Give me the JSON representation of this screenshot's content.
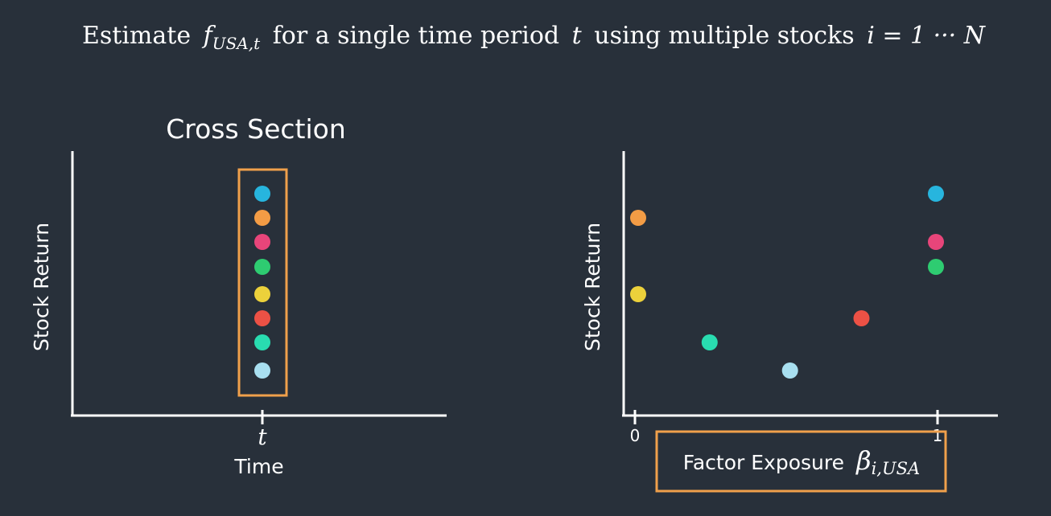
{
  "header": {
    "pre": "Estimate",
    "f_symbol": "f",
    "f_subscript": "USA,t",
    "mid": "for a single time period",
    "t_symbol": "t",
    "post": "using multiple stocks",
    "range_expr": "i = 1 ··· N"
  },
  "colors": {
    "background": "#28303a",
    "axis": "#ffffff",
    "highlight_box": "#f0a04b"
  },
  "chart_data": [
    {
      "type": "scatter",
      "title": "Cross Section",
      "ylabel": "Stock Return",
      "xlabel": "Time",
      "x_tick_label": "t",
      "grid": false,
      "note": "all stocks observed at the same time period t, highlighted by an orange box",
      "points": [
        {
          "color": "#27b5de",
          "y": 8
        },
        {
          "color": "#f39c45",
          "y": 7
        },
        {
          "color": "#e8457a",
          "y": 6
        },
        {
          "color": "#2ecc71",
          "y": 5
        },
        {
          "color": "#ecd13b",
          "y": 4
        },
        {
          "color": "#ec5145",
          "y": 3
        },
        {
          "color": "#29dcb0",
          "y": 2
        },
        {
          "color": "#a8dff0",
          "y": 1
        }
      ]
    },
    {
      "type": "scatter",
      "title": "",
      "ylabel": "Stock Return",
      "xlabel": "Factor Exposure",
      "xlabel_symbol": "β",
      "xlabel_subscript": "i,USA",
      "x_ticks": [
        "0",
        "1"
      ],
      "xlim": [
        0,
        1
      ],
      "grid": false,
      "points": [
        {
          "color": "#f39c45",
          "x": 0.0,
          "y": 7
        },
        {
          "color": "#ecd13b",
          "x": 0.0,
          "y": 4
        },
        {
          "color": "#29dcb0",
          "x": 0.24,
          "y": 2
        },
        {
          "color": "#a8dff0",
          "x": 0.51,
          "y": 1
        },
        {
          "color": "#ec5145",
          "x": 0.75,
          "y": 3
        },
        {
          "color": "#27b5de",
          "x": 1.0,
          "y": 8
        },
        {
          "color": "#e8457a",
          "x": 1.0,
          "y": 6
        },
        {
          "color": "#2ecc71",
          "x": 1.0,
          "y": 5
        }
      ]
    }
  ]
}
